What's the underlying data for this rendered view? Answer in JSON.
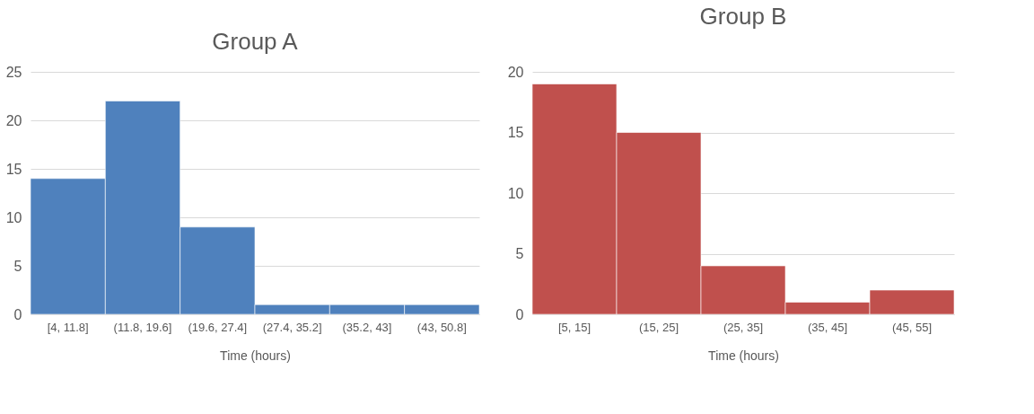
{
  "chart_data": [
    {
      "type": "bar",
      "title": "Group A",
      "xlabel": "Time (hours)",
      "categories": [
        "[4, 11.8]",
        "(11.8, 19.6]",
        "(19.6, 27.4]",
        "(27.4, 35.2]",
        "(35.2, 43]",
        "(43, 50.8]"
      ],
      "values": [
        14,
        22,
        9,
        1,
        1,
        1
      ],
      "color": "#4f81bd",
      "ylim": [
        0,
        25
      ],
      "yticks": [
        0,
        5,
        10,
        15,
        20,
        25
      ],
      "grid": "y"
    },
    {
      "type": "bar",
      "title": "Group B",
      "xlabel": "Time (hours)",
      "categories": [
        "[5, 15]",
        "(15, 25]",
        "(25, 35]",
        "(35, 45]",
        "(45, 55]"
      ],
      "values": [
        19,
        15,
        4,
        1,
        2
      ],
      "color": "#c0504d",
      "ylim": [
        0,
        20
      ],
      "yticks": [
        0,
        5,
        10,
        15,
        20
      ],
      "grid": "y"
    }
  ]
}
